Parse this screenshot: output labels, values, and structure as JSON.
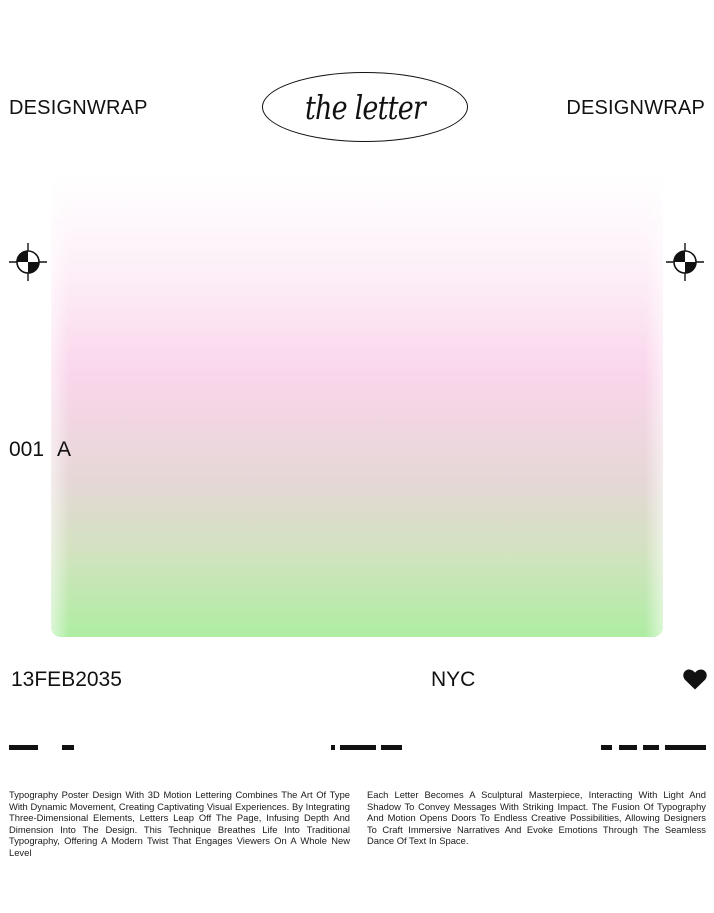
{
  "header": {
    "brand_left": "DESIGNWRAP",
    "brand_right": "DESIGNWRAP",
    "logo_text": "the letter"
  },
  "index": {
    "number": "001",
    "letter": "A"
  },
  "footer": {
    "date": "13FEB2035",
    "city": "NYC",
    "icon": "heart-icon"
  },
  "description": {
    "left": "Typography Poster Design With 3D Motion Lettering Combines The Art Of Type With Dynamic Movement, Creating Captivating Visual Experiences. By Integrating Three-Dimensional Elements, Letters Leap Off The Page, Infusing Depth And Dimension Into The Design. This Technique Breathes Life Into Traditional Typography, Offering A Modern Twist That Engages Viewers On A Whole New Level",
    "right": "Each Letter Becomes A Sculptural Masterpiece, Interacting With Light And Shadow To Convey Messages With Striking Impact. The Fusion Of Typography And Motion Opens Doors To Endless Creative Possibilities, Allowing Designers To Craft Immersive Narratives And Evoke Emotions Through The Seamless Dance Of Text In Space."
  },
  "colors": {
    "gradient_top": "#ffffff",
    "gradient_pink": "#fad6ec",
    "gradient_green": "#aeeda2",
    "ink": "#111111"
  }
}
